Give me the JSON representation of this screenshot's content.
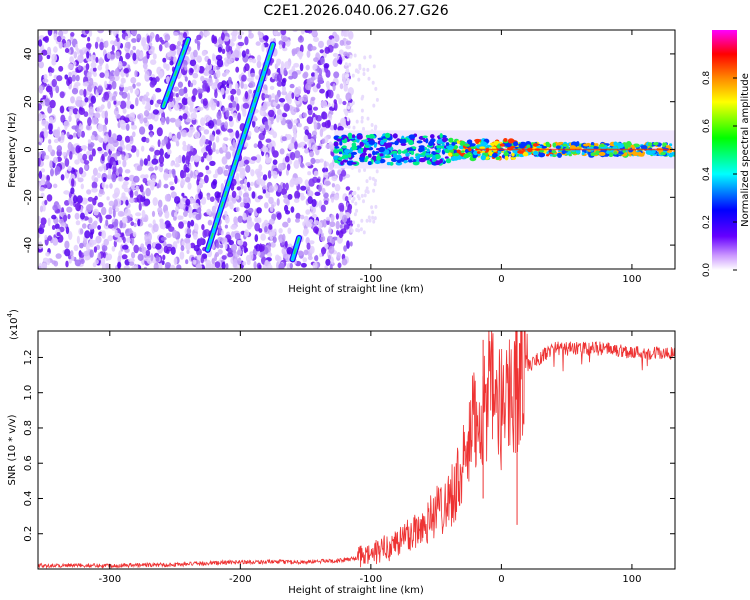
{
  "title": "C2E1.2026.040.06.27.G26",
  "chart_data": [
    {
      "type": "heatmap",
      "name": "spectrogram",
      "xlabel": "Height of straight line (km)",
      "ylabel": "Frequency (Hz)",
      "xlim": [
        -355,
        133
      ],
      "ylim": [
        -50,
        50
      ],
      "xticks": [
        -300,
        -200,
        -100,
        0,
        100
      ],
      "yticks": [
        -40,
        -20,
        0,
        20,
        40
      ],
      "colorbar": {
        "label": "Normalized spectral amplitude",
        "range": [
          0,
          1
        ],
        "ticks": [
          "0.0",
          "0.2",
          "0.4",
          "0.6",
          "0.8"
        ],
        "colors": [
          "#ffffff",
          "#cc99ff",
          "#6600ff",
          "#0000ff",
          "#00ffff",
          "#00ff00",
          "#ffff00",
          "#ff8800",
          "#ff0000",
          "#ff00ff"
        ]
      },
      "noise_region_x": [
        -355,
        -115
      ],
      "tone": {
        "x_range": [
          -128,
          133
        ],
        "frequency_hz": 0,
        "description": "strong narrow carrier near 0 Hz, peak amplitude ~0.9 near x = -20 to 30 km"
      },
      "streaks": [
        {
          "x0": -240,
          "y0": 46,
          "x1": -259,
          "y1": 18,
          "peak": 0.45
        },
        {
          "x0": -175,
          "y0": 44,
          "x1": -225,
          "y1": -42,
          "peak": 0.55
        },
        {
          "x0": -155,
          "y0": -37,
          "x1": -160,
          "y1": -46,
          "peak": 0.4
        }
      ]
    },
    {
      "type": "line",
      "name": "snr",
      "xlabel": "Height of straight line (km)",
      "ylabel": "SNR (10 * v/v)",
      "yscale_label": "(x10",
      "yscale_exp": "4",
      "yscale_close": ")",
      "xlim": [
        -355,
        133
      ],
      "ylim": [
        0.0,
        1.35
      ],
      "xticks": [
        -300,
        -200,
        -100,
        0,
        100
      ],
      "yticks": [
        "0.2",
        "0.4",
        "0.6",
        "0.8",
        "1.0",
        "1.2"
      ],
      "color": "#ee3333",
      "series": [
        {
          "name": "SNR",
          "x": [
            -355,
            -300,
            -250,
            -200,
            -150,
            -120,
            -100,
            -80,
            -60,
            -40,
            -30,
            -20,
            -15,
            -10,
            -5,
            0,
            5,
            10,
            15,
            20,
            30,
            40,
            60,
            80,
            100,
            133
          ],
          "y": [
            0.02,
            0.02,
            0.025,
            0.04,
            0.04,
            0.05,
            0.08,
            0.15,
            0.25,
            0.4,
            0.55,
            0.85,
            0.9,
            1.0,
            0.95,
            0.9,
            1.05,
            1.0,
            1.15,
            1.15,
            1.2,
            1.25,
            1.25,
            1.25,
            1.23,
            1.22
          ]
        }
      ]
    }
  ]
}
